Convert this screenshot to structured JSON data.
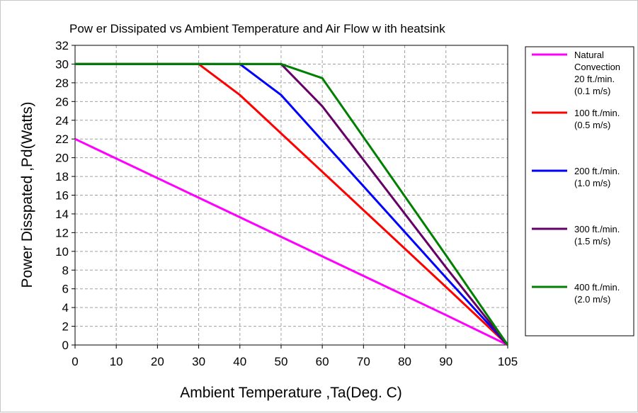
{
  "chart_data": {
    "type": "line",
    "title": "Pow er Dissipated vs Ambient Temperature and Air Flow w ith heatsink",
    "xlabel": "Ambient Temperature ,Ta(Deg. C)",
    "ylabel": "Power Disspated ,Pd(Watts)",
    "xlim": [
      0,
      105
    ],
    "ylim": [
      0,
      32
    ],
    "xticks": [
      "0",
      "10",
      "20",
      "30",
      "40",
      "50",
      "60",
      "70",
      "80",
      "90",
      "105"
    ],
    "xtick_values": [
      0,
      10,
      20,
      30,
      40,
      50,
      60,
      70,
      80,
      90,
      105
    ],
    "yticks": [
      0,
      2,
      4,
      6,
      8,
      10,
      12,
      14,
      16,
      18,
      20,
      22,
      24,
      26,
      28,
      30,
      32
    ],
    "grid": true,
    "legend_position": "right",
    "series": [
      {
        "name": "Natural Convection 20 ft./min. (0.1 m/s)",
        "label_lines": [
          "Natural",
          "Convection",
          "20 ft./min.",
          "(0.1 m/s)"
        ],
        "color": "#ff00ff",
        "x": [
          0,
          90,
          105
        ],
        "y": [
          22,
          3.2,
          0
        ]
      },
      {
        "name": "100 ft./min. (0.5 m/s)",
        "label_lines": [
          "100 ft./min.",
          "(0.5 m/s)"
        ],
        "color": "#ff0000",
        "x": [
          0,
          30,
          40,
          90,
          105
        ],
        "y": [
          30,
          30,
          26.7,
          6.2,
          0
        ]
      },
      {
        "name": "200 ft./min. (1.0 m/s)",
        "label_lines": [
          "200 ft./min.",
          "(1.0 m/s)"
        ],
        "color": "#0000ff",
        "x": [
          0,
          40,
          50,
          90,
          105
        ],
        "y": [
          30,
          30,
          26.7,
          7.2,
          0
        ]
      },
      {
        "name": "300 ft./min. (1.5 m/s)",
        "label_lines": [
          "300 ft./min.",
          "(1.5 m/s)"
        ],
        "color": "#660066",
        "x": [
          0,
          50,
          60,
          90,
          105
        ],
        "y": [
          30,
          30,
          25.5,
          8.3,
          0
        ]
      },
      {
        "name": "400 ft./min. (2.0 m/s)",
        "label_lines": [
          "400 ft./min.",
          "(2.0 m/s)"
        ],
        "color": "#008000",
        "x": [
          0,
          50,
          60,
          90,
          105
        ],
        "y": [
          30,
          30,
          28.5,
          9.6,
          0
        ]
      }
    ]
  }
}
